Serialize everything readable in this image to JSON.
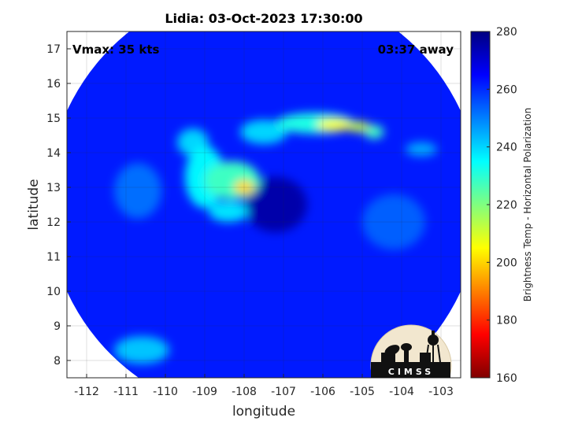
{
  "chart_data": {
    "type": "heatmap",
    "title": "Lidia: 03-Oct-2023 17:30:00",
    "xlabel": "longitude",
    "ylabel": "latitude",
    "xlim": [
      -112.5,
      -102.5
    ],
    "ylim": [
      7.5,
      17.5
    ],
    "xticks": [
      -112,
      -111,
      -110,
      -109,
      -108,
      -107,
      -106,
      -105,
      -104,
      -103
    ],
    "yticks": [
      8,
      9,
      10,
      11,
      12,
      13,
      14,
      15,
      16,
      17
    ],
    "grid": true,
    "annotations": {
      "vmax": "Vmax: 35 kts",
      "time_offset": "03:37 away"
    },
    "colorbar": {
      "label": "Brightness Temp - Horizontal Polarization",
      "min": 160,
      "max": 280,
      "ticks": [
        160,
        180,
        200,
        220,
        240,
        260,
        280
      ],
      "colormap": "jet"
    },
    "swath": {
      "center": [
        -107.5,
        12.6
      ],
      "radius_deg": 5.5,
      "background_value": 262
    },
    "features": [
      {
        "shape": "blob",
        "center": [
          -108.0,
          13.0
        ],
        "radii": [
          0.25,
          0.2
        ],
        "value": 200
      },
      {
        "shape": "blob",
        "center": [
          -108.3,
          13.2
        ],
        "radii": [
          0.7,
          0.55
        ],
        "value": 228
      },
      {
        "shape": "blob",
        "center": [
          -109.0,
          13.3
        ],
        "radii": [
          0.5,
          0.9
        ],
        "value": 236
      },
      {
        "shape": "blob",
        "center": [
          -108.4,
          12.3
        ],
        "radii": [
          0.5,
          0.3
        ],
        "value": 238
      },
      {
        "shape": "blob",
        "center": [
          -109.3,
          14.3
        ],
        "radii": [
          0.4,
          0.4
        ],
        "value": 240
      },
      {
        "shape": "blob",
        "center": [
          -107.5,
          14.6
        ],
        "radii": [
          0.6,
          0.35
        ],
        "value": 240
      },
      {
        "shape": "blob",
        "center": [
          -106.2,
          14.85
        ],
        "radii": [
          1.0,
          0.3
        ],
        "value": 232
      },
      {
        "shape": "blob",
        "center": [
          -105.7,
          14.8
        ],
        "radii": [
          0.45,
          0.17
        ],
        "value": 205
      },
      {
        "shape": "blob",
        "center": [
          -105.1,
          14.75
        ],
        "radii": [
          0.3,
          0.15
        ],
        "value": 212
      },
      {
        "shape": "blob",
        "center": [
          -104.7,
          14.6
        ],
        "radii": [
          0.25,
          0.2
        ],
        "value": 228
      },
      {
        "shape": "blob",
        "center": [
          -103.5,
          14.1
        ],
        "radii": [
          0.4,
          0.2
        ],
        "value": 245
      },
      {
        "shape": "blob",
        "center": [
          -110.6,
          8.3
        ],
        "radii": [
          0.7,
          0.4
        ],
        "value": 242
      },
      {
        "shape": "blob",
        "center": [
          -110.7,
          12.9
        ],
        "radii": [
          0.6,
          0.8
        ],
        "value": 252
      },
      {
        "shape": "blob",
        "center": [
          -104.2,
          12.0
        ],
        "radii": [
          0.8,
          0.8
        ],
        "value": 254
      },
      {
        "shape": "blob",
        "center": [
          -107.2,
          12.5
        ],
        "radii": [
          0.8,
          0.8
        ],
        "value": 275
      }
    ]
  },
  "logo": {
    "text": "CIMSS"
  }
}
